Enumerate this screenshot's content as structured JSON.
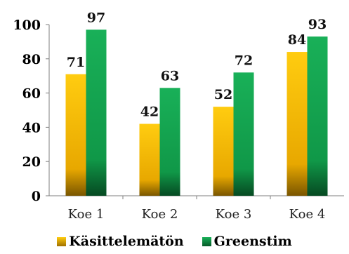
{
  "chart_data": {
    "type": "bar",
    "categories": [
      "Koe 1",
      "Koe 2",
      "Koe 3",
      "Koe 4"
    ],
    "series": [
      {
        "name": "Käsittelemätön",
        "values": [
          71,
          42,
          52,
          84
        ],
        "color": "#f2b400"
      },
      {
        "name": "Greenstim",
        "values": [
          97,
          63,
          72,
          93
        ],
        "color": "#16a050"
      }
    ],
    "yticks": [
      0,
      20,
      40,
      60,
      80,
      100
    ],
    "ylim": [
      0,
      100
    ],
    "grid": false,
    "legend": "bottom"
  }
}
